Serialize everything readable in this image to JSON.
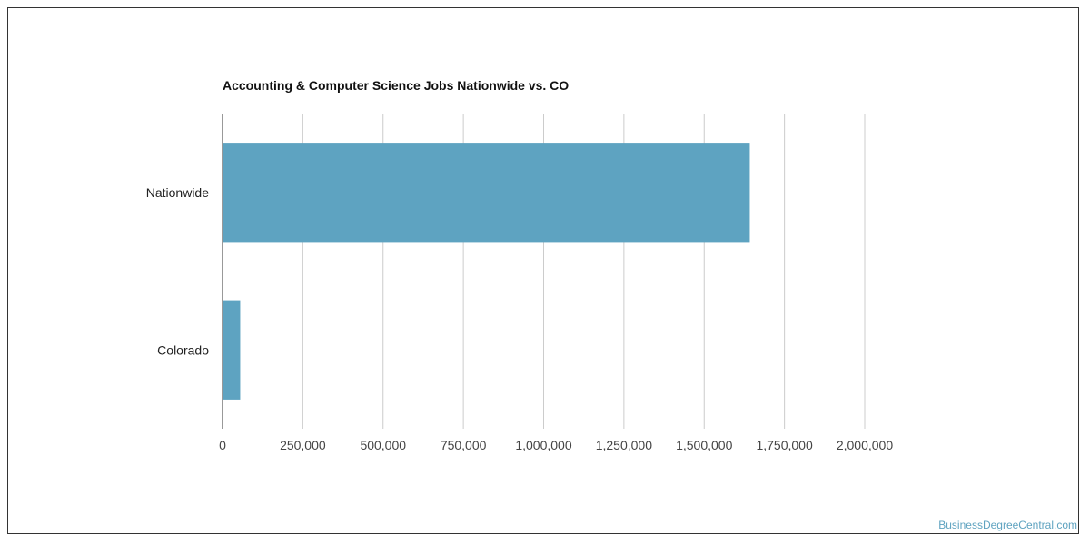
{
  "chart_data": {
    "type": "bar",
    "orientation": "horizontal",
    "title": "Accounting & Computer Science Jobs Nationwide vs. CO",
    "categories": [
      "Nationwide",
      "Colorado"
    ],
    "values": [
      1642000,
      55000
    ],
    "xlim": [
      0,
      2000000
    ],
    "xticks": [
      "0",
      "250,000",
      "500,000",
      "750,000",
      "1,000,000",
      "1,250,000",
      "1,500,000",
      "1,750,000",
      "2,000,000"
    ],
    "xtick_values": [
      0,
      250000,
      500000,
      750000,
      1000000,
      1250000,
      1500000,
      1750000,
      2000000
    ],
    "grid": true,
    "bar_color": "#5ea3c1"
  },
  "watermark": "BusinessDegreeCentral.com"
}
